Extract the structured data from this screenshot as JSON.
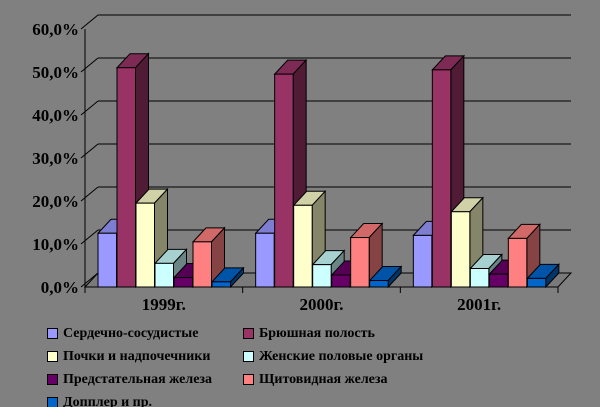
{
  "chart_data": {
    "type": "bar",
    "projection": "3d",
    "title": "",
    "categories": [
      "1999г.",
      "2000г.",
      "2001г."
    ],
    "series": [
      {
        "name": "Сердечно-сосудистые",
        "color": "#9999FF",
        "values": [
          12.5,
          12.5,
          12.0
        ]
      },
      {
        "name": "Брюшная полость",
        "color": "#993366",
        "values": [
          51.0,
          49.5,
          50.5
        ]
      },
      {
        "name": "Почки и надпочечники",
        "color": "#FFFFCC",
        "values": [
          19.5,
          19.0,
          17.5
        ]
      },
      {
        "name": "Женские половые органы",
        "color": "#CCFFFF",
        "values": [
          5.5,
          5.2,
          4.3
        ]
      },
      {
        "name": "Предстательная железа",
        "color": "#660066",
        "values": [
          2.2,
          2.8,
          3.0
        ]
      },
      {
        "name": "Щитовидная железа",
        "color": "#FF8080",
        "values": [
          10.5,
          11.5,
          11.3
        ]
      },
      {
        "name": "Допплер и пр.",
        "color": "#0066CC",
        "values": [
          1.2,
          1.5,
          2.0
        ]
      }
    ],
    "y_ticks": [
      "0,0%",
      "10,0%",
      "20,0%",
      "30,0%",
      "40,0%",
      "50,0%",
      "60,0%"
    ],
    "ylim": [
      0,
      60
    ],
    "grid": true,
    "legend_position": "bottom",
    "background": "#808080",
    "axis_color": "#000000"
  }
}
